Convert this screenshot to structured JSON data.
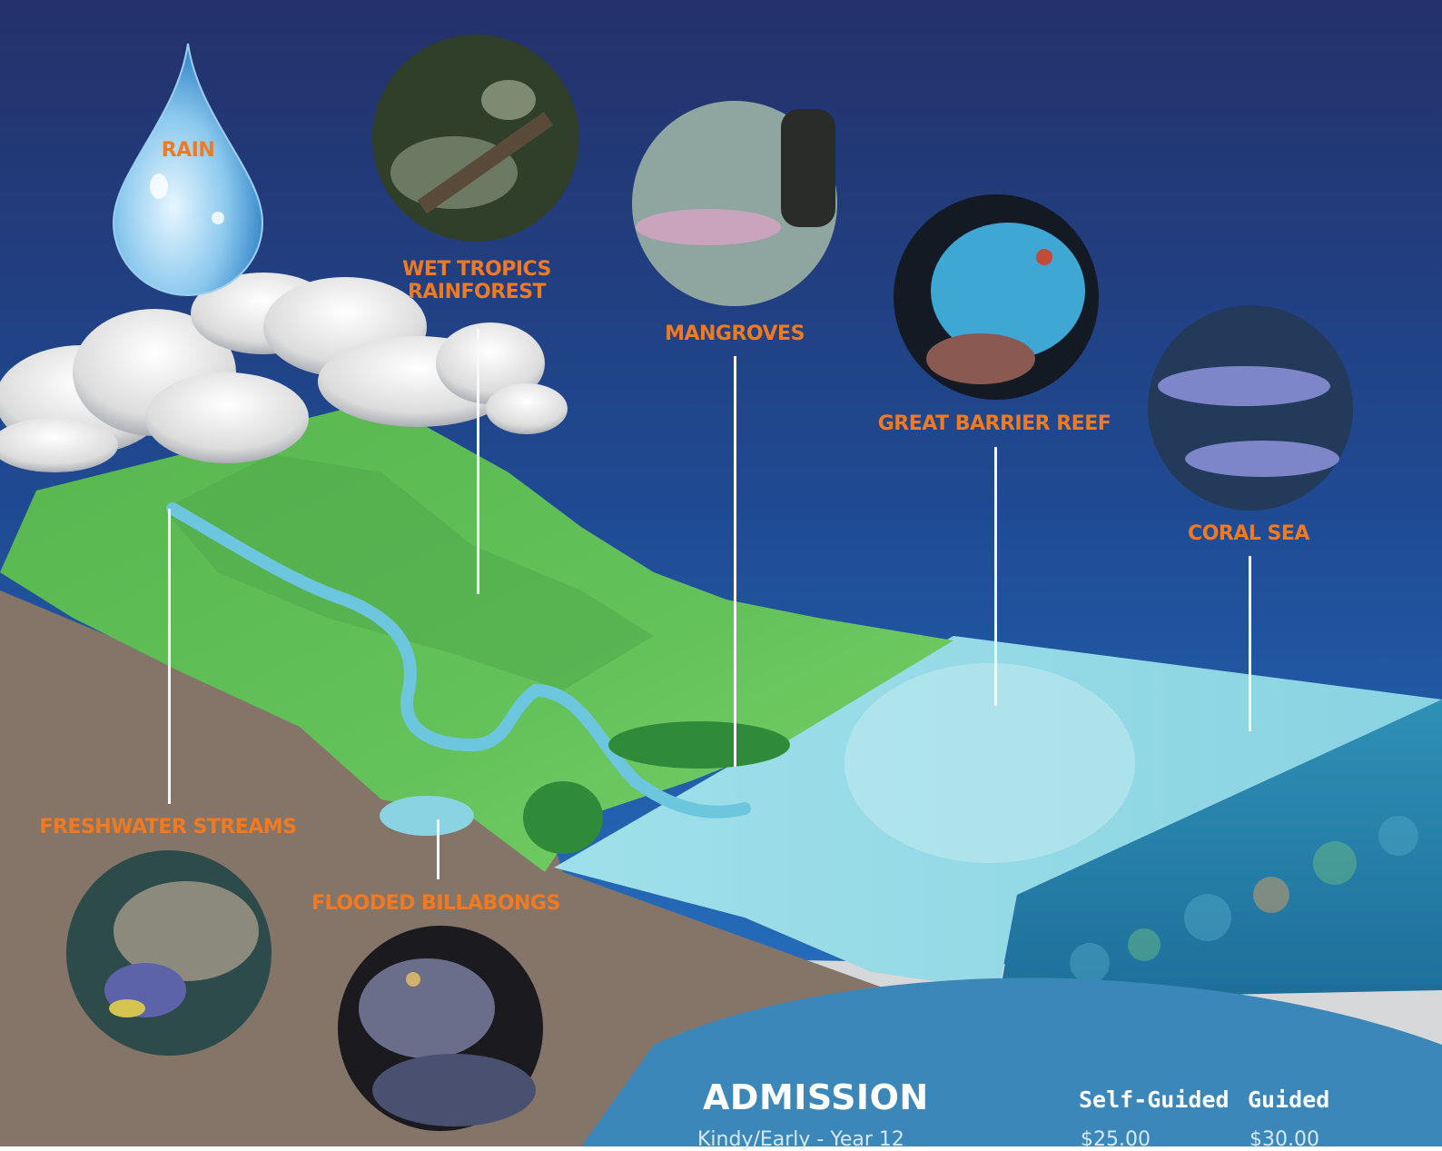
{
  "diagram": {
    "labels": {
      "rain": "RAIN",
      "wet_tropics": "WET TROPICS RAINFOREST",
      "mangroves": "MANGROVES",
      "great_barrier_reef": "GREAT BARRIER REEF",
      "coral_sea": "CORAL SEA",
      "freshwater_streams": "FRESHWATER STREAMS",
      "flooded_billabongs": "FLOODED BILLABONGS"
    },
    "colors": {
      "sky_top": "#24316a",
      "sky_bottom": "#2366b4",
      "land_green": "#5fbf55",
      "soil": "#857568",
      "water": "#8fd6e2",
      "label_orange": "#f07a22",
      "admission_blue": "#3b87b9"
    }
  },
  "admission": {
    "title": "ADMISSION",
    "columns": [
      "Self-Guided",
      "Guided"
    ],
    "rows": [
      {
        "label": "Kindy/Early - Year 12",
        "self_guided": "$25.00",
        "guided": "$30.00"
      }
    ]
  }
}
